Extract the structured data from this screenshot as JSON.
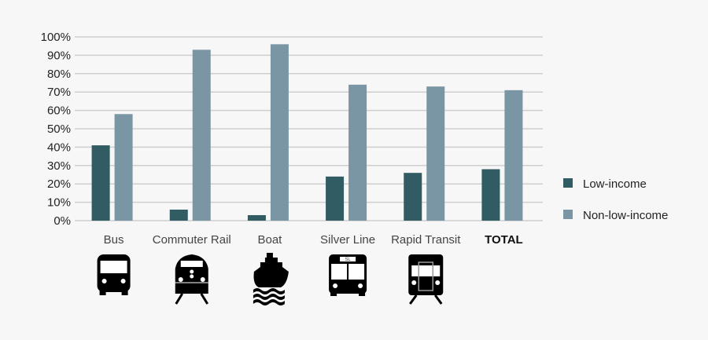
{
  "chart_data": {
    "type": "bar",
    "categories": [
      "Bus",
      "Commuter Rail",
      "Boat",
      "Silver Line",
      "Rapid Transit",
      "TOTAL"
    ],
    "category_icons": [
      "bus-icon",
      "commuter-rail-icon",
      "boat-icon",
      "silver-line-bus-icon",
      "rapid-transit-icon",
      ""
    ],
    "silver_line_sign": "SL",
    "series": [
      {
        "name": "Low-income",
        "color": "#325c63",
        "values": [
          41,
          6,
          3,
          24,
          26,
          28
        ]
      },
      {
        "name": "Non-low-income",
        "color": "#7a95a3",
        "values": [
          58,
          93,
          96,
          74,
          73,
          71
        ]
      }
    ],
    "yticks": [
      "0%",
      "10%",
      "20%",
      "30%",
      "40%",
      "50%",
      "60%",
      "70%",
      "80%",
      "90%",
      "100%"
    ],
    "ylim": [
      0,
      100
    ],
    "grid": true,
    "legend": "right",
    "title": "",
    "xlabel": "",
    "ylabel": ""
  }
}
